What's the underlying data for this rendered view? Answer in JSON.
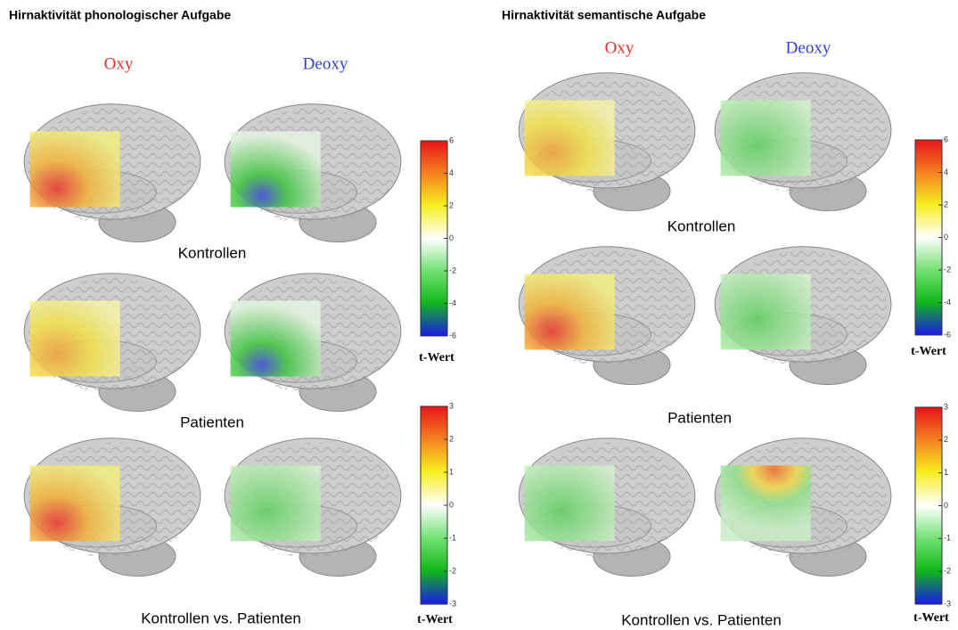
{
  "panels": [
    {
      "title": "Hirnaktivität phonologischer Aufgabe",
      "columns": [
        "Oxy",
        "Deoxy"
      ],
      "rows": [
        "Kontrollen",
        "Patienten",
        "Kontrollen vs. Patienten"
      ],
      "colorbars": [
        {
          "ticks": [
            6,
            4,
            2,
            0,
            -2,
            -4,
            -6
          ],
          "label": "t-Wert"
        },
        {
          "ticks": [
            3,
            2,
            1,
            0,
            -1,
            -2,
            -3
          ],
          "label": "t-Wert"
        }
      ]
    },
    {
      "title": "Hirnaktivität semantische Aufgabe",
      "columns": [
        "Oxy",
        "Deoxy"
      ],
      "rows": [
        "Kontrollen",
        "Patienten",
        "Kontrollen vs. Patienten"
      ],
      "colorbars": [
        {
          "ticks": [
            6,
            4,
            2,
            0,
            -2,
            -4,
            -6
          ],
          "label": "t-Wert"
        },
        {
          "ticks": [
            3,
            2,
            1,
            0,
            -1,
            -2,
            -3
          ],
          "label": "t-Wert"
        }
      ]
    }
  ]
}
